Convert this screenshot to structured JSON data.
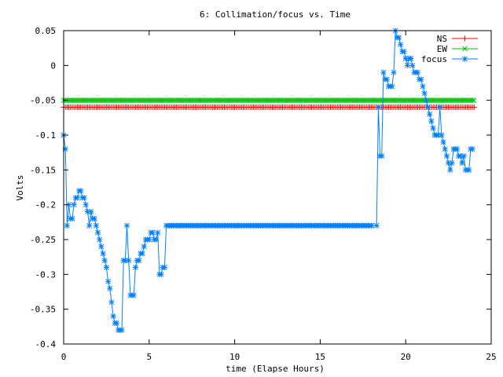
{
  "chart_data": {
    "type": "line",
    "title": "6: Collimation/focus vs. Time",
    "xlabel": "time (Elapse Hours)",
    "ylabel": "Volts",
    "xlim": [
      0,
      25
    ],
    "ylim": [
      -0.4,
      0.05
    ],
    "xticks": [
      0,
      5,
      10,
      15,
      20,
      25
    ],
    "xtick_labels": [
      "0",
      "5",
      "10",
      "15",
      "20",
      "25"
    ],
    "yticks": [
      0.05,
      0,
      -0.05,
      -0.1,
      -0.15,
      -0.2,
      -0.25,
      -0.3,
      -0.35,
      -0.4
    ],
    "ytick_labels": [
      "0.05",
      "0",
      "-0.05",
      "-0.1",
      "-0.15",
      "-0.2",
      "-0.25",
      "-0.3",
      "-0.35",
      "-0.4"
    ],
    "grid": false,
    "legend_position": "top-right",
    "series": [
      {
        "name": "NS",
        "color": "#ff0000",
        "marker": "plus",
        "points": [
          [
            0,
            -0.06
          ],
          [
            24,
            -0.06
          ]
        ],
        "marker_step": 0.1
      },
      {
        "name": "EW",
        "color": "#00c000",
        "marker": "cross",
        "points": [
          [
            0,
            -0.05
          ],
          [
            24,
            -0.05
          ]
        ],
        "marker_step": 0.1
      },
      {
        "name": "focus",
        "color": "#0080ff",
        "marker": "star",
        "points": [
          [
            0.0,
            -0.1
          ],
          [
            0.1,
            -0.12
          ],
          [
            0.2,
            -0.23
          ],
          [
            0.3,
            -0.2
          ],
          [
            0.4,
            -0.22
          ],
          [
            0.5,
            -0.22
          ],
          [
            0.6,
            -0.2
          ],
          [
            0.7,
            -0.19
          ],
          [
            0.8,
            -0.19
          ],
          [
            0.9,
            -0.18
          ],
          [
            1.0,
            -0.18
          ],
          [
            1.1,
            -0.19
          ],
          [
            1.2,
            -0.19
          ],
          [
            1.3,
            -0.2
          ],
          [
            1.4,
            -0.21
          ],
          [
            1.5,
            -0.23
          ],
          [
            1.6,
            -0.21
          ],
          [
            1.7,
            -0.22
          ],
          [
            1.8,
            -0.22
          ],
          [
            1.9,
            -0.23
          ],
          [
            2.0,
            -0.24
          ],
          [
            2.1,
            -0.25
          ],
          [
            2.2,
            -0.26
          ],
          [
            2.3,
            -0.27
          ],
          [
            2.4,
            -0.28
          ],
          [
            2.5,
            -0.29
          ],
          [
            2.6,
            -0.31
          ],
          [
            2.7,
            -0.32
          ],
          [
            2.8,
            -0.34
          ],
          [
            2.9,
            -0.36
          ],
          [
            3.0,
            -0.37
          ],
          [
            3.1,
            -0.37
          ],
          [
            3.2,
            -0.38
          ],
          [
            3.3,
            -0.38
          ],
          [
            3.4,
            -0.38
          ],
          [
            3.5,
            -0.28
          ],
          [
            3.6,
            -0.28
          ],
          [
            3.7,
            -0.23
          ],
          [
            3.8,
            -0.28
          ],
          [
            3.9,
            -0.33
          ],
          [
            4.0,
            -0.33
          ],
          [
            4.1,
            -0.33
          ],
          [
            4.2,
            -0.29
          ],
          [
            4.3,
            -0.28
          ],
          [
            4.4,
            -0.28
          ],
          [
            4.5,
            -0.27
          ],
          [
            4.6,
            -0.27
          ],
          [
            4.7,
            -0.26
          ],
          [
            4.8,
            -0.25
          ],
          [
            4.9,
            -0.25
          ],
          [
            5.0,
            -0.25
          ],
          [
            5.1,
            -0.24
          ],
          [
            5.2,
            -0.24
          ],
          [
            5.3,
            -0.25
          ],
          [
            5.4,
            -0.25
          ],
          [
            5.5,
            -0.24
          ],
          [
            5.6,
            -0.3
          ],
          [
            5.7,
            -0.3
          ],
          [
            5.8,
            -0.29
          ],
          [
            5.9,
            -0.29
          ],
          [
            6.0,
            -0.23
          ],
          [
            18.0,
            -0.23
          ],
          [
            18.3,
            -0.23
          ],
          [
            18.4,
            -0.06
          ],
          [
            18.5,
            -0.13
          ],
          [
            18.6,
            -0.13
          ],
          [
            18.7,
            -0.01
          ],
          [
            18.8,
            -0.02
          ],
          [
            18.9,
            -0.02
          ],
          [
            19.0,
            -0.03
          ],
          [
            19.1,
            -0.03
          ],
          [
            19.2,
            -0.03
          ],
          [
            19.3,
            -0.01
          ],
          [
            19.4,
            0.05
          ],
          [
            19.5,
            0.04
          ],
          [
            19.6,
            0.04
          ],
          [
            19.7,
            0.03
          ],
          [
            19.8,
            0.02
          ],
          [
            19.9,
            0.02
          ],
          [
            20.0,
            0.01
          ],
          [
            20.1,
            0.0
          ],
          [
            20.2,
            0.01
          ],
          [
            20.3,
            0.01
          ],
          [
            20.4,
            0.0
          ],
          [
            20.5,
            -0.01
          ],
          [
            20.6,
            -0.01
          ],
          [
            20.7,
            -0.01
          ],
          [
            20.8,
            -0.02
          ],
          [
            20.9,
            -0.02
          ],
          [
            21.0,
            -0.03
          ],
          [
            21.1,
            -0.04
          ],
          [
            21.2,
            -0.05
          ],
          [
            21.3,
            -0.06
          ],
          [
            21.4,
            -0.07
          ],
          [
            21.5,
            -0.08
          ],
          [
            21.6,
            -0.09
          ],
          [
            21.7,
            -0.1
          ],
          [
            21.8,
            -0.1
          ],
          [
            21.9,
            -0.1
          ],
          [
            22.0,
            -0.06
          ],
          [
            22.1,
            -0.1
          ],
          [
            22.2,
            -0.11
          ],
          [
            22.3,
            -0.12
          ],
          [
            22.4,
            -0.13
          ],
          [
            22.5,
            -0.14
          ],
          [
            22.6,
            -0.15
          ],
          [
            22.7,
            -0.14
          ],
          [
            22.8,
            -0.12
          ],
          [
            22.9,
            -0.12
          ],
          [
            23.0,
            -0.12
          ],
          [
            23.1,
            -0.13
          ],
          [
            23.2,
            -0.13
          ],
          [
            23.3,
            -0.14
          ],
          [
            23.4,
            -0.13
          ],
          [
            23.5,
            -0.15
          ],
          [
            23.6,
            -0.15
          ],
          [
            23.7,
            -0.15
          ],
          [
            23.8,
            -0.12
          ],
          [
            23.9,
            -0.12
          ]
        ]
      }
    ]
  }
}
